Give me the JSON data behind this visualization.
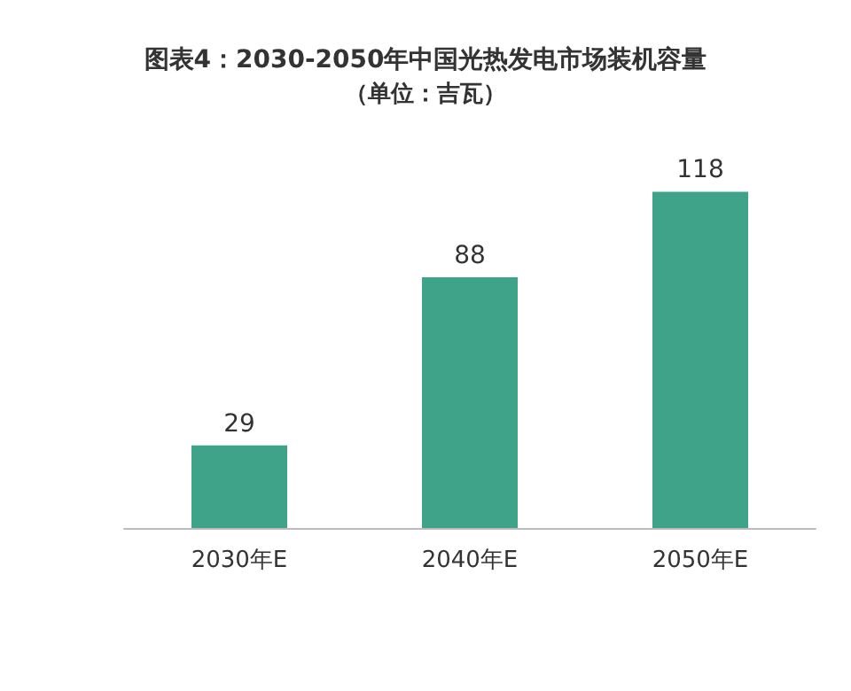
{
  "chart_data": {
    "type": "bar",
    "title": "图表4：2030-2050年中国光热发电市场装机容量",
    "subtitle": "（单位：吉瓦）",
    "categories": [
      "2030年E",
      "2040年E",
      "2050年E"
    ],
    "values": [
      29,
      88,
      118
    ],
    "color": "#3fa38a",
    "data_labels": true
  }
}
